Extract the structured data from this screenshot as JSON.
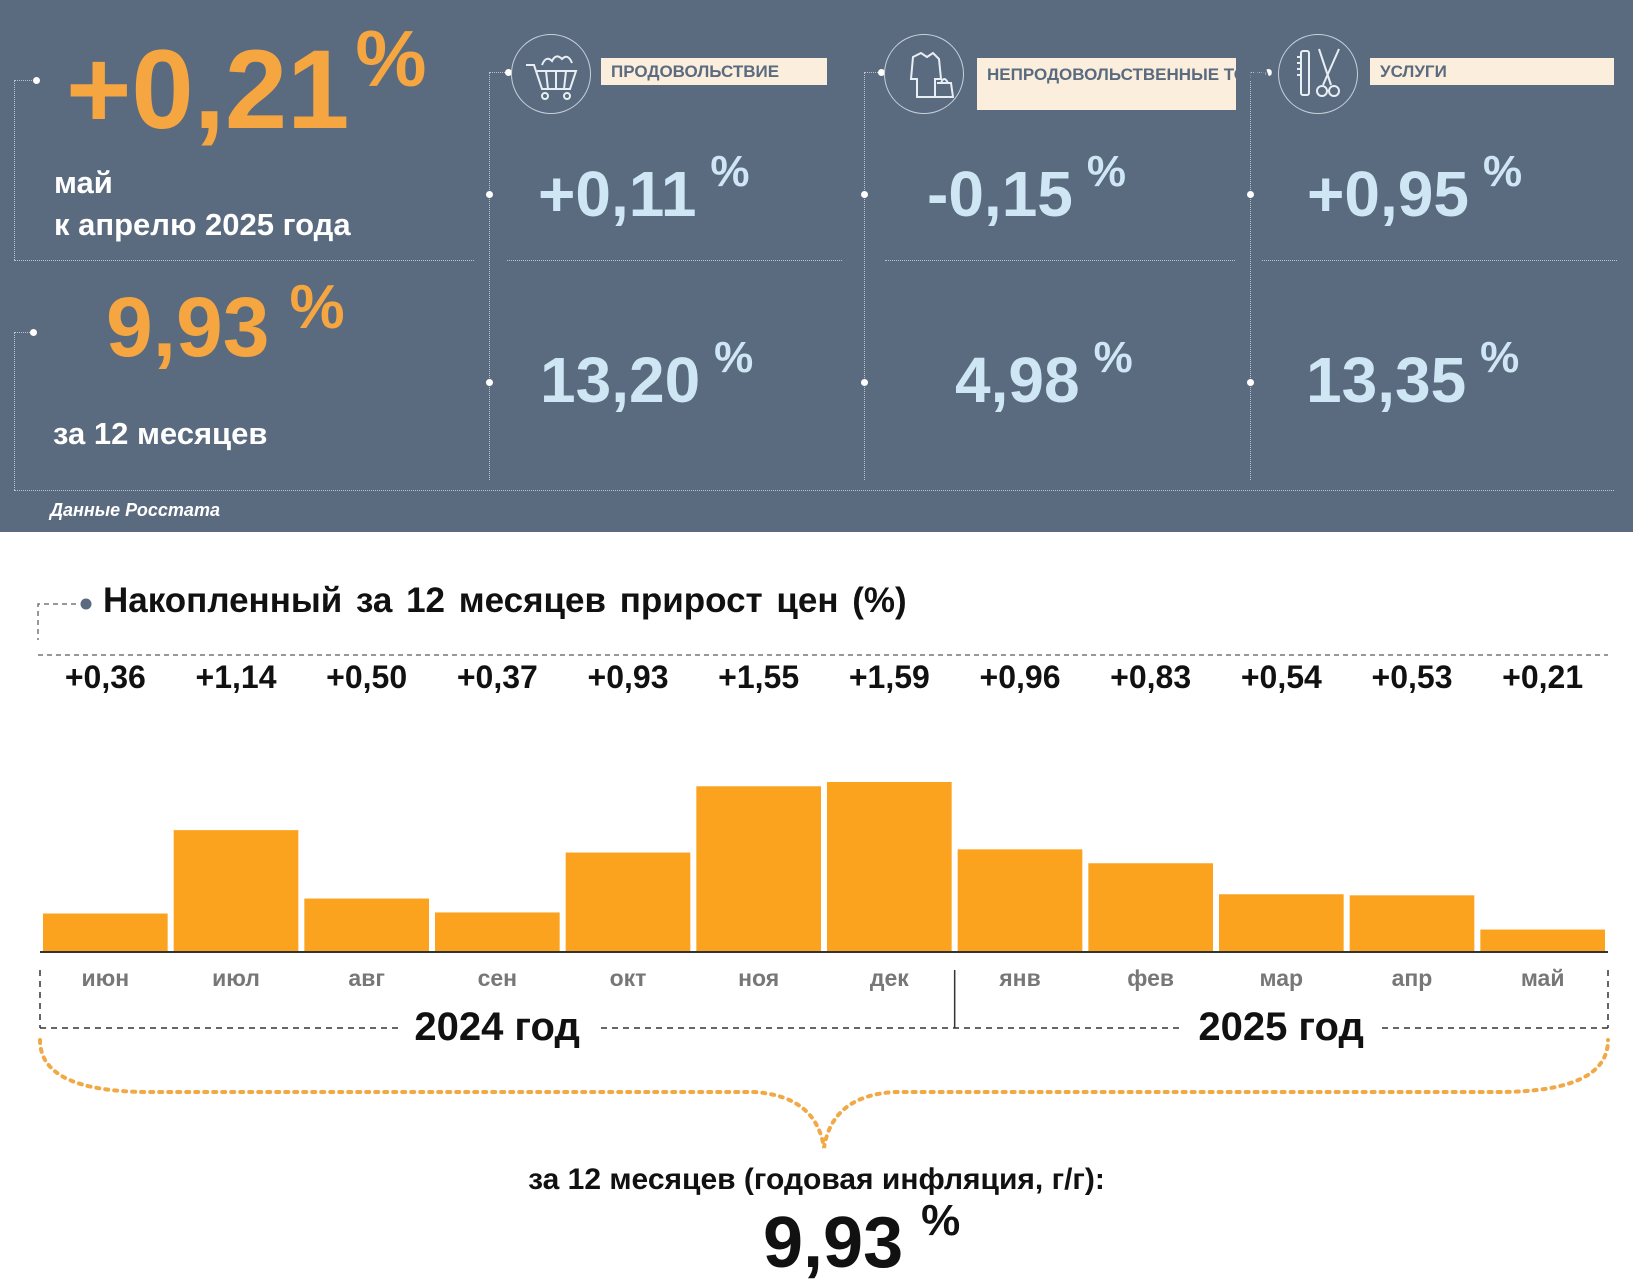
{
  "summary": {
    "month_change": "+0,21",
    "month_label_1": "май",
    "month_label_2": "к апрелю 2025 года",
    "annual_change": "9,93",
    "annual_label": "за 12 месяцев",
    "percent": "%",
    "source": "Данные Росстата"
  },
  "categories": [
    {
      "label": "ПРОДОВОЛЬСТВИЕ",
      "icon": "shopping-cart-icon",
      "month": "+0,11",
      "annual": "13,20"
    },
    {
      "label": "НЕПРОДОВОЛЬСТВЕННЫЕ ТОВАРЫ",
      "icon": "clothing-icon",
      "month": "-0,15",
      "annual": "4,98"
    },
    {
      "label": "УСЛУГИ",
      "icon": "scissors-comb-icon",
      "month": "+0,95",
      "annual": "13,35"
    }
  ],
  "colors": {
    "panel": "#5a6b80",
    "accent_orange": "#f5a640",
    "bar": "#fba31e",
    "value_blue": "#cfe6f4"
  },
  "chart_data": {
    "type": "bar",
    "title": "Накопленный за 12 месяцев прирост цен (%)",
    "categories": [
      "июн",
      "июл",
      "авг",
      "сен",
      "окт",
      "ноя",
      "дек",
      "янв",
      "фев",
      "мар",
      "апр",
      "май"
    ],
    "values": [
      0.36,
      1.14,
      0.5,
      0.37,
      0.93,
      1.55,
      1.59,
      0.96,
      0.83,
      0.54,
      0.53,
      0.21
    ],
    "value_labels": [
      "+0,36",
      "+1,14",
      "+0,50",
      "+0,37",
      "+0,93",
      "+1,55",
      "+1,59",
      "+0,96",
      "+0,83",
      "+0,54",
      "+0,53",
      "+0,21"
    ],
    "year_groups": [
      {
        "label": "2024 год",
        "months": 7
      },
      {
        "label": "2025 год",
        "months": 5
      }
    ],
    "total_label": "за 12 месяцев (годовая инфляция, г/г):",
    "total_value": "9,93"
  }
}
